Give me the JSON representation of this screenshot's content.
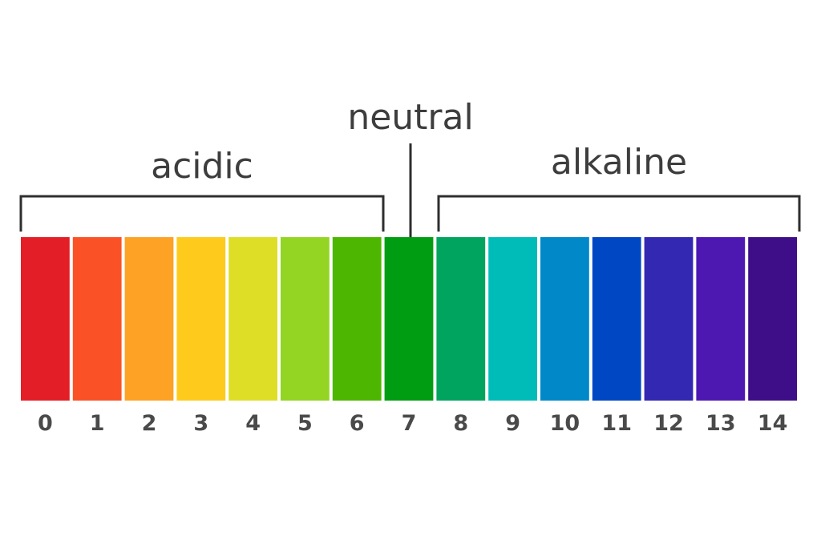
{
  "labels": {
    "acidic": "acidic",
    "neutral": "neutral",
    "alkaline": "alkaline"
  },
  "scale": [
    {
      "value": "0",
      "color": "#e41e26"
    },
    {
      "value": "1",
      "color": "#fa5226"
    },
    {
      "value": "2",
      "color": "#fda225"
    },
    {
      "value": "3",
      "color": "#fecb1c"
    },
    {
      "value": "4",
      "color": "#dede26"
    },
    {
      "value": "5",
      "color": "#93d522"
    },
    {
      "value": "6",
      "color": "#4db600"
    },
    {
      "value": "7",
      "color": "#009d12"
    },
    {
      "value": "8",
      "color": "#00a45e"
    },
    {
      "value": "9",
      "color": "#00bcb8"
    },
    {
      "value": "10",
      "color": "#0088c9"
    },
    {
      "value": "11",
      "color": "#0047c4"
    },
    {
      "value": "12",
      "color": "#3328b2"
    },
    {
      "value": "13",
      "color": "#4d18b2"
    },
    {
      "value": "14",
      "color": "#3d0e88"
    }
  ]
}
